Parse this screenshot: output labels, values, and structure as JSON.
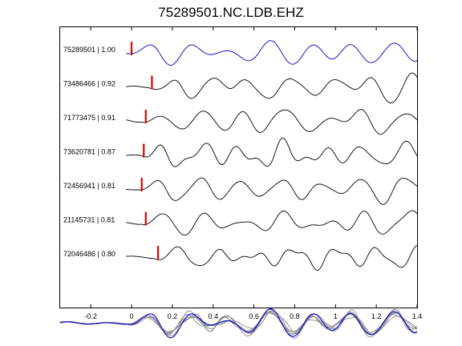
{
  "chart_data": {
    "type": "line",
    "title": "75289501.NC.LDB.EHZ",
    "xlabel": "",
    "ylabel": "",
    "xlim": [
      -0.35,
      1.4
    ],
    "x_ticks": [
      -0.2,
      0,
      0.2,
      0.4,
      0.6,
      0.8,
      1,
      1.2,
      1.4
    ],
    "x_tick_labels": [
      "-0.2",
      "0",
      "0.2",
      "0.4",
      "0.6",
      "0.8",
      "1",
      "1.2",
      "1.4"
    ],
    "grid": false,
    "colors": {
      "reference": "#0000cc",
      "trace": "#000000",
      "overlay": "#8c8c8c",
      "pick": "#e00000"
    },
    "series": [
      {
        "name": "75289501 | 1.00",
        "pick_time": 0.0
      },
      {
        "name": "73486466 | 0.92",
        "pick_time": 0.1
      },
      {
        "name": "71773475 | 0.91",
        "pick_time": 0.07
      },
      {
        "name": "73620781 | 0.87",
        "pick_time": 0.06
      },
      {
        "name": "72456941 | 0.81",
        "pick_time": 0.05
      },
      {
        "name": "21145731 | 0.81",
        "pick_time": 0.07
      },
      {
        "name": "72046486 | 0.80",
        "pick_time": 0.13
      }
    ],
    "stack": {
      "name": "",
      "pick_time": null
    }
  }
}
